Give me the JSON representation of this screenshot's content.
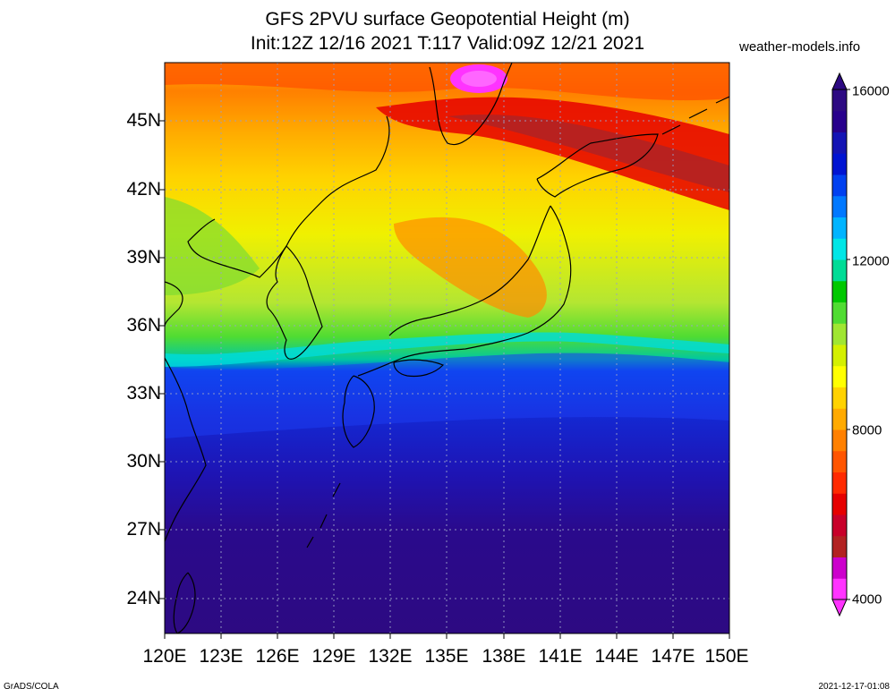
{
  "title_line1": "GFS 2PVU surface Geopotential Height (m)",
  "title_line2": "Init:12Z 12/16 2021 T:117 Valid:09Z 12/21 2021",
  "brand": "weather-models.info",
  "lat_labels": [
    "45N",
    "42N",
    "39N",
    "36N",
    "33N",
    "30N",
    "27N",
    "24N"
  ],
  "lon_labels": [
    "120E",
    "123E",
    "126E",
    "129E",
    "132E",
    "135E",
    "138E",
    "141E",
    "144E",
    "147E",
    "150E"
  ],
  "colorbar": {
    "labels": [
      "16000",
      "12000",
      "8000",
      "4000"
    ],
    "colors": [
      "#ff33ff",
      "#cc00cc",
      "#b22222",
      "#c8002a",
      "#e60000",
      "#ff2a00",
      "#ff5500",
      "#ff8000",
      "#ffaa00",
      "#ffd200",
      "#ffff00",
      "#d4f000",
      "#a0e632",
      "#50dc32",
      "#00c800",
      "#00dc96",
      "#00e6e6",
      "#00b4ff",
      "#0078ff",
      "#0040f0",
      "#0014d2",
      "#1414b4",
      "#28008c",
      "#2d0a82"
    ]
  },
  "footer_left": "GrADS/COLA",
  "footer_right": "2021-12-17-01:08"
}
